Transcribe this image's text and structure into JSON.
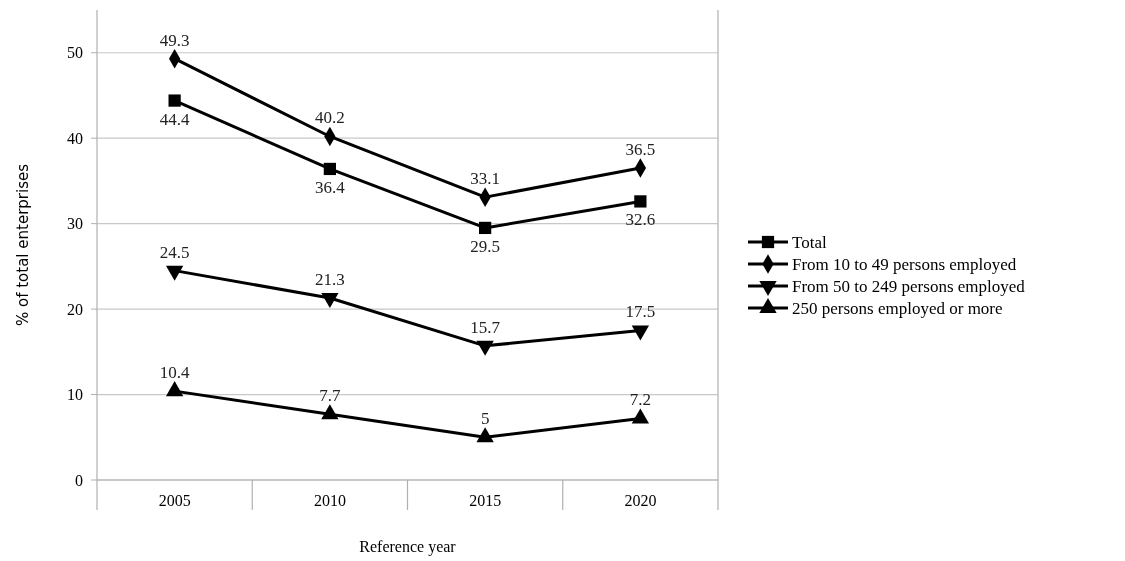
{
  "chart_data": {
    "type": "line",
    "xlabel": "Reference year",
    "ylabel": "% of total enterprises",
    "categories": [
      "2005",
      "2010",
      "2015",
      "2020"
    ],
    "series": [
      {
        "name": "Total",
        "color": "#000000",
        "marker": "square",
        "values": [
          44.4,
          36.4,
          29.5,
          32.6
        ]
      },
      {
        "name": "From 10 to 49 persons employed",
        "color": "#000000",
        "marker": "diamond",
        "values": [
          49.3,
          40.2,
          33.1,
          36.5
        ]
      },
      {
        "name": "From 50 to 249 persons employed",
        "color": "#000000",
        "marker": "triangle-down",
        "values": [
          24.5,
          21.3,
          15.7,
          17.5
        ]
      },
      {
        "name": "250 persons employed or more",
        "color": "#000000",
        "marker": "triangle",
        "values": [
          10.4,
          7.7,
          5,
          7.2
        ]
      }
    ],
    "ylim": [
      0,
      55
    ],
    "yticks": [
      0,
      10,
      20,
      30,
      40,
      50
    ],
    "grid": "y",
    "legend": "right",
    "data_labels": true
  }
}
